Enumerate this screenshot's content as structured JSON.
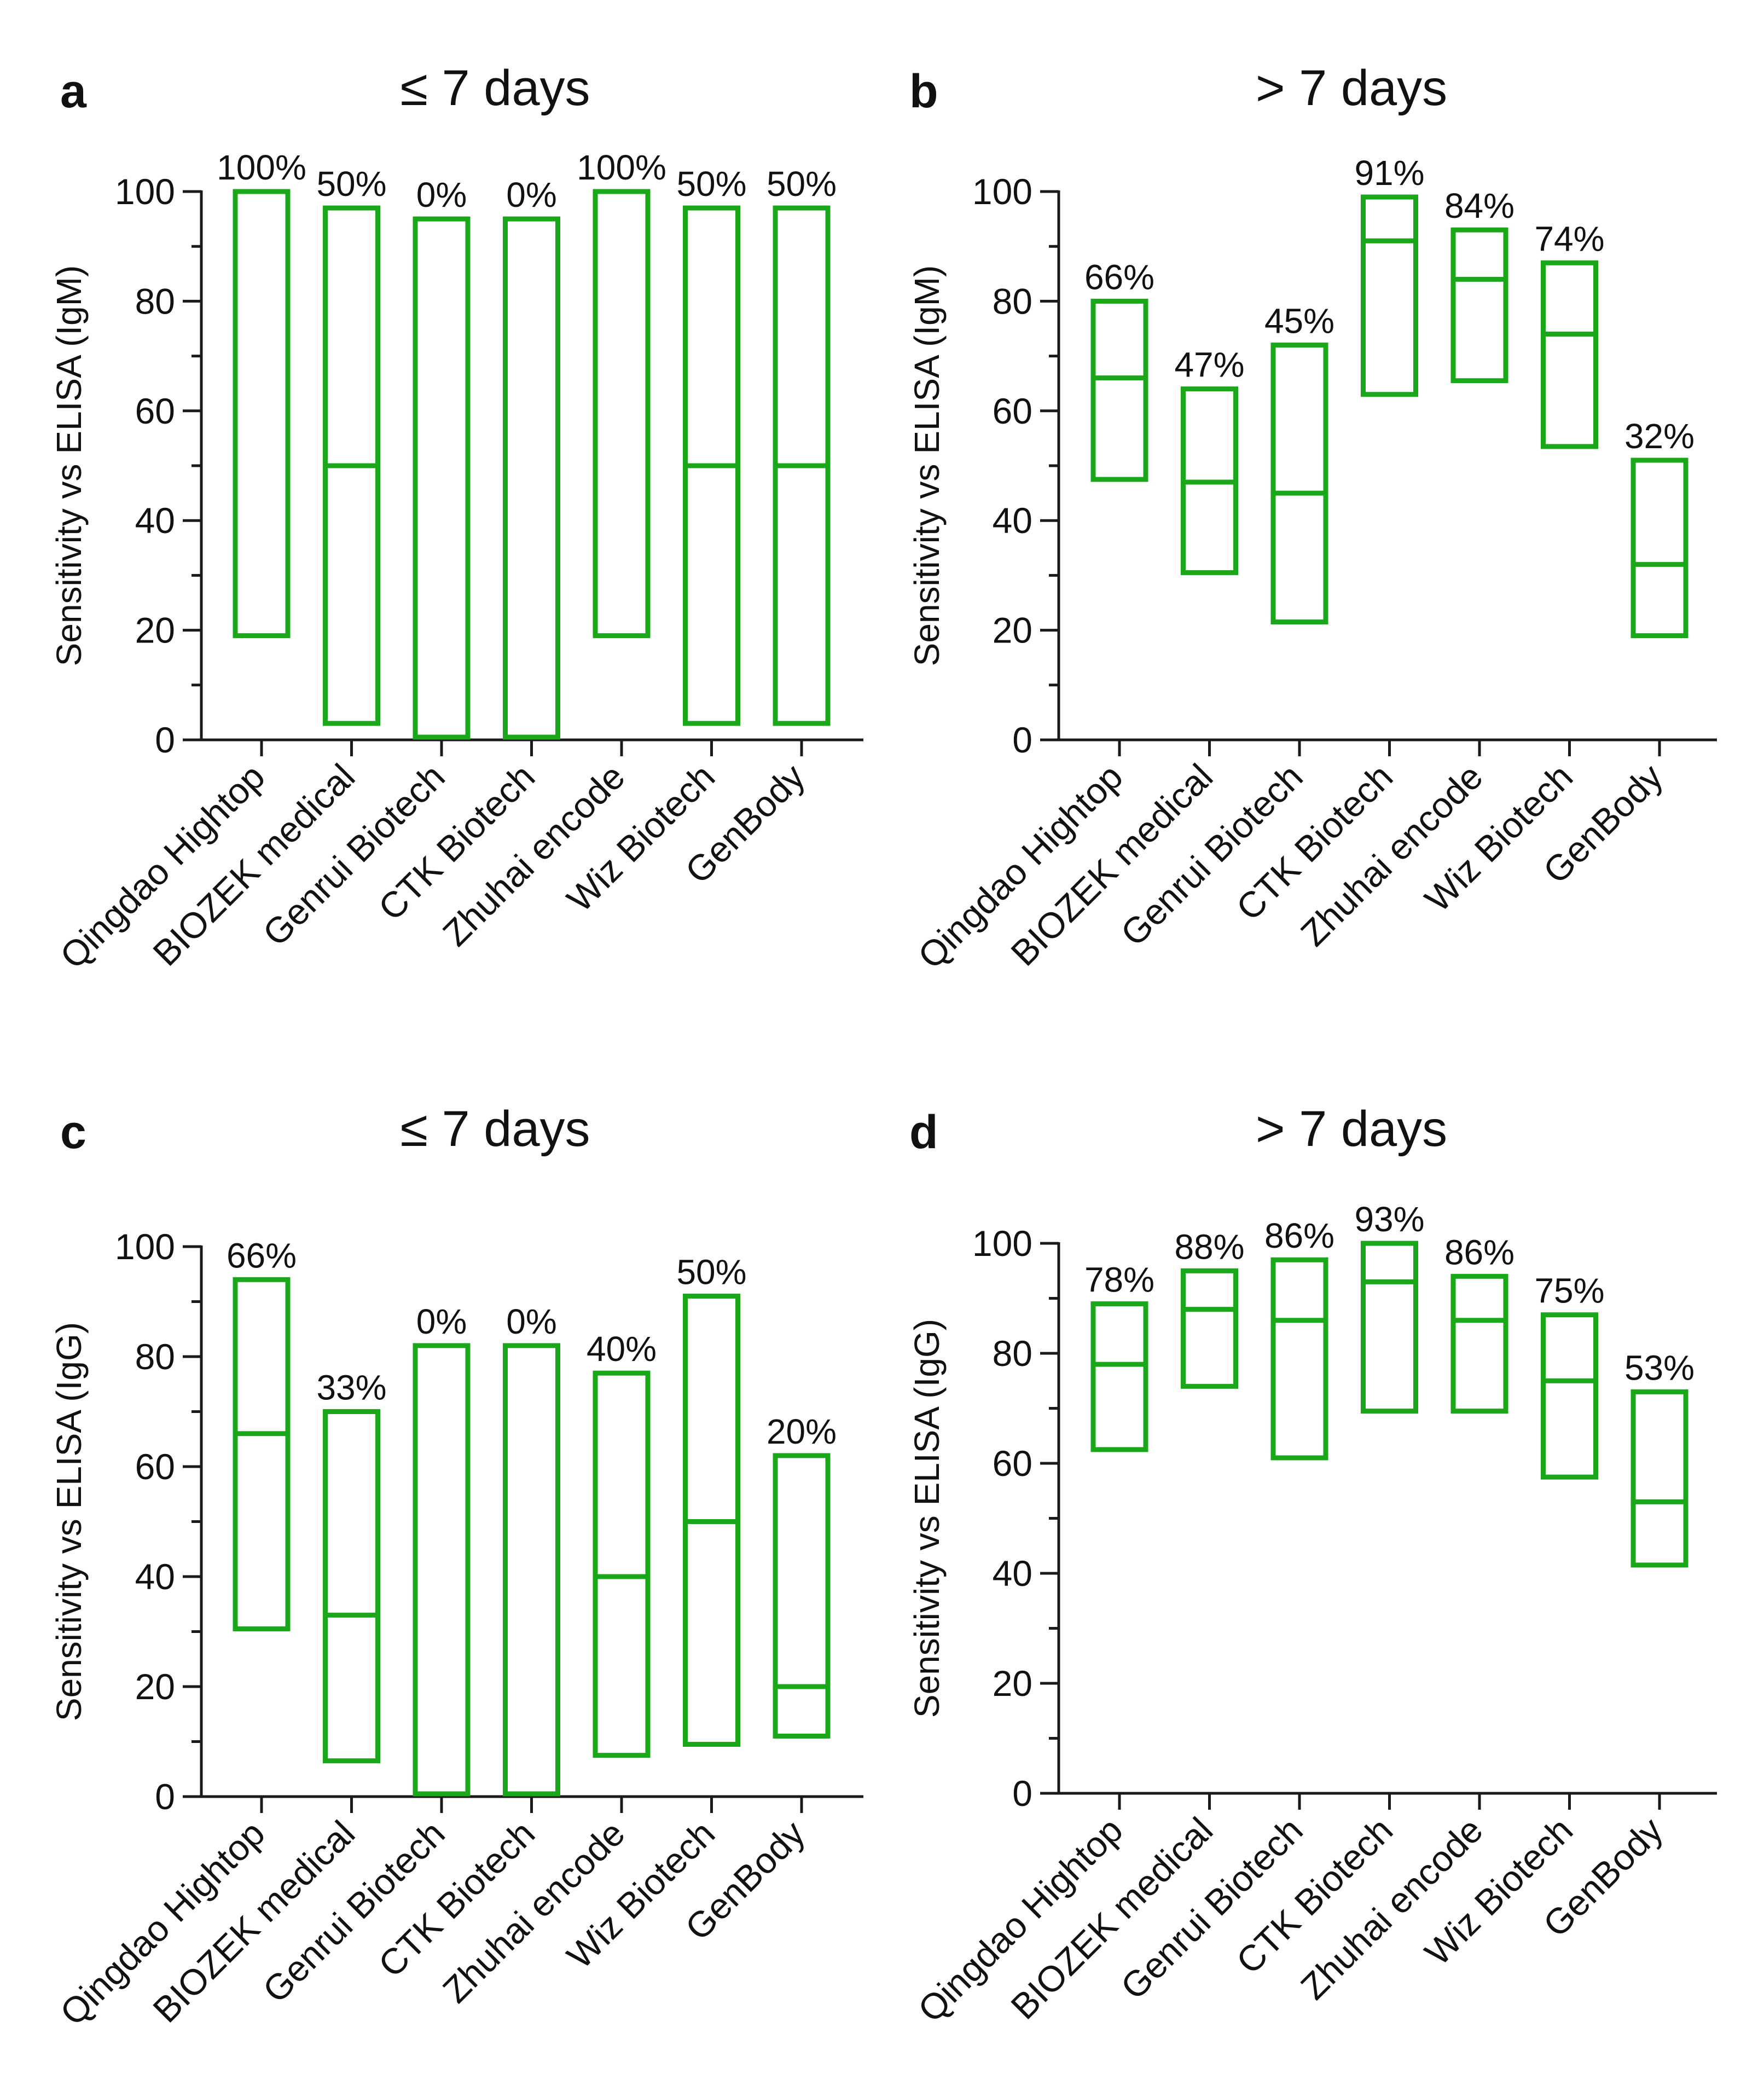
{
  "colors": {
    "box": "#1aa81a",
    "axis": "#1a1a1a",
    "text": "#111111"
  },
  "chart_data": [
    {
      "panel": "a",
      "type": "bar",
      "title": "≤ 7 days",
      "ylabel": "Sensitivity vs ELISA (IgM)",
      "ylim": [
        0,
        100
      ],
      "yticks": [
        "0",
        "20",
        "40",
        "60",
        "80",
        "100"
      ],
      "categories": [
        "Qingdao Hightop",
        "BIOZEK medical",
        "Genrui Biotech",
        "CTK Biotech",
        "Zhuhai encode",
        "Wiz Biotech",
        "GenBody"
      ],
      "series": [
        {
          "name": "lower",
          "values": [
            19,
            3,
            0.5,
            0.5,
            19,
            3,
            3
          ]
        },
        {
          "name": "upper",
          "values": [
            100,
            97,
            95,
            95,
            100,
            97,
            97
          ]
        },
        {
          "name": "sensitivity",
          "values": [
            100,
            50,
            0,
            0,
            100,
            50,
            50
          ]
        }
      ],
      "value_labels": [
        "100%",
        "50%",
        "0%",
        "0%",
        "100%",
        "50%",
        "50%"
      ]
    },
    {
      "panel": "b",
      "type": "bar",
      "title": "> 7 days",
      "ylabel": "Sensitivity vs ELISA (IgM)",
      "ylim": [
        0,
        100
      ],
      "yticks": [
        "0",
        "20",
        "40",
        "60",
        "80",
        "100"
      ],
      "categories": [
        "Qingdao Hightop",
        "BIOZEK medical",
        "Genrui Biotech",
        "CTK Biotech",
        "Zhuhai encode",
        "Wiz Biotech",
        "GenBody"
      ],
      "series": [
        {
          "name": "lower",
          "values": [
            47.5,
            30.5,
            21.5,
            63,
            65.5,
            53.5,
            19
          ]
        },
        {
          "name": "upper",
          "values": [
            80,
            64,
            72,
            99,
            93,
            87,
            51
          ]
        },
        {
          "name": "sensitivity",
          "values": [
            66,
            47,
            45,
            91,
            84,
            74,
            32
          ]
        }
      ],
      "value_labels": [
        "66%",
        "47%",
        "45%",
        "91%",
        "84%",
        "74%",
        "32%"
      ]
    },
    {
      "panel": "c",
      "type": "bar",
      "title": "≤ 7 days",
      "ylabel": "Sensitivity vs ELISA  (IgG)",
      "ylim": [
        0,
        100
      ],
      "yticks": [
        "0",
        "20",
        "40",
        "60",
        "80",
        "100"
      ],
      "categories": [
        "Qingdao Hightop",
        "BIOZEK medical",
        "Genrui Biotech",
        "CTK Biotech",
        "Zhuhai encode",
        "Wiz Biotech",
        "GenBody"
      ],
      "series": [
        {
          "name": "lower",
          "values": [
            30.5,
            6.5,
            0.5,
            0.5,
            7.5,
            9.5,
            11
          ]
        },
        {
          "name": "upper",
          "values": [
            94,
            70,
            82,
            82,
            77,
            91,
            62
          ]
        },
        {
          "name": "sensitivity",
          "values": [
            66,
            33,
            0,
            0,
            40,
            50,
            20
          ]
        }
      ],
      "value_labels": [
        "66%",
        "33%",
        "0%",
        "0%",
        "40%",
        "50%",
        "20%"
      ]
    },
    {
      "panel": "d",
      "type": "bar",
      "title": "> 7 days",
      "ylabel": "Sensitivity vs ELISA (IgG)",
      "ylim": [
        0,
        100
      ],
      "yticks": [
        "0",
        "20",
        "40",
        "60",
        "80",
        "100"
      ],
      "categories": [
        "Qingdao Hightop",
        "BIOZEK medical",
        "Genrui Biotech",
        "CTK Biotech",
        "Zhuhai encode",
        "Wiz Biotech",
        "GenBody"
      ],
      "series": [
        {
          "name": "lower",
          "values": [
            62.5,
            74,
            61,
            69.5,
            69.5,
            57.5,
            41.5
          ]
        },
        {
          "name": "upper",
          "values": [
            89,
            95,
            97,
            100,
            94,
            87,
            73
          ]
        },
        {
          "name": "sensitivity",
          "values": [
            78,
            88,
            86,
            93,
            86,
            75,
            53
          ]
        }
      ],
      "value_labels": [
        "78%",
        "88%",
        "86%",
        "93%",
        "86%",
        "75%",
        "53%"
      ]
    }
  ]
}
